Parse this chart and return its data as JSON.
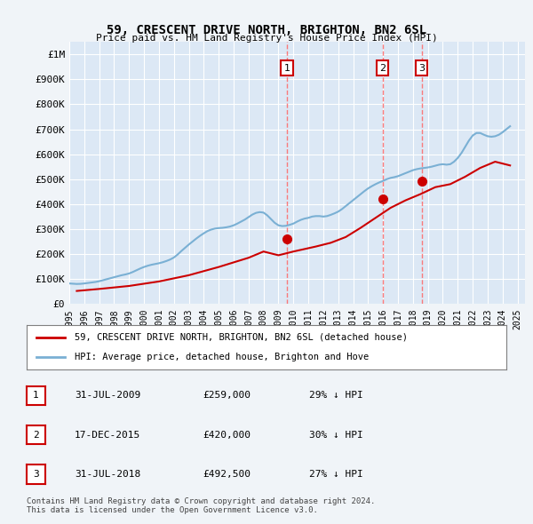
{
  "title": "59, CRESCENT DRIVE NORTH, BRIGHTON, BN2 6SL",
  "subtitle": "Price paid vs. HM Land Registry's House Price Index (HPI)",
  "background_color": "#f0f4f8",
  "plot_background": "#dce8f5",
  "grid_color": "#ffffff",
  "hpi_color": "#7ab0d4",
  "price_color": "#cc0000",
  "sale_marker_color": "#cc0000",
  "vline_color": "#ff6666",
  "ylim": [
    0,
    1050000
  ],
  "yticks": [
    0,
    100000,
    200000,
    300000,
    400000,
    500000,
    600000,
    700000,
    800000,
    900000,
    1000000
  ],
  "ytick_labels": [
    "£0",
    "£100K",
    "£200K",
    "£300K",
    "£400K",
    "£500K",
    "£600K",
    "£700K",
    "£800K",
    "£900K",
    "£1M"
  ],
  "xmin": 1995.0,
  "xmax": 2025.5,
  "xtick_years": [
    1995,
    1996,
    1997,
    1998,
    1999,
    2000,
    2001,
    2002,
    2003,
    2004,
    2005,
    2006,
    2007,
    2008,
    2009,
    2010,
    2011,
    2012,
    2013,
    2014,
    2015,
    2016,
    2017,
    2018,
    2019,
    2020,
    2021,
    2022,
    2023,
    2024,
    2025
  ],
  "sale_dates": [
    2009.58,
    2015.96,
    2018.58
  ],
  "sale_prices": [
    259000,
    420000,
    492500
  ],
  "sale_labels": [
    "1",
    "2",
    "3"
  ],
  "legend_entries": [
    "59, CRESCENT DRIVE NORTH, BRIGHTON, BN2 6SL (detached house)",
    "HPI: Average price, detached house, Brighton and Hove"
  ],
  "table_rows": [
    [
      "1",
      "31-JUL-2009",
      "£259,000",
      "29% ↓ HPI"
    ],
    [
      "2",
      "17-DEC-2015",
      "£420,000",
      "30% ↓ HPI"
    ],
    [
      "3",
      "31-JUL-2018",
      "£492,500",
      "27% ↓ HPI"
    ]
  ],
  "footnote": "Contains HM Land Registry data © Crown copyright and database right 2024.\nThis data is licensed under the Open Government Licence v3.0.",
  "hpi_data_x": [
    1995.0,
    1995.25,
    1995.5,
    1995.75,
    1996.0,
    1996.25,
    1996.5,
    1996.75,
    1997.0,
    1997.25,
    1997.5,
    1997.75,
    1998.0,
    1998.25,
    1998.5,
    1998.75,
    1999.0,
    1999.25,
    1999.5,
    1999.75,
    2000.0,
    2000.25,
    2000.5,
    2000.75,
    2001.0,
    2001.25,
    2001.5,
    2001.75,
    2002.0,
    2002.25,
    2002.5,
    2002.75,
    2003.0,
    2003.25,
    2003.5,
    2003.75,
    2004.0,
    2004.25,
    2004.5,
    2004.75,
    2005.0,
    2005.25,
    2005.5,
    2005.75,
    2006.0,
    2006.25,
    2006.5,
    2006.75,
    2007.0,
    2007.25,
    2007.5,
    2007.75,
    2008.0,
    2008.25,
    2008.5,
    2008.75,
    2009.0,
    2009.25,
    2009.5,
    2009.75,
    2010.0,
    2010.25,
    2010.5,
    2010.75,
    2011.0,
    2011.25,
    2011.5,
    2011.75,
    2012.0,
    2012.25,
    2012.5,
    2012.75,
    2013.0,
    2013.25,
    2013.5,
    2013.75,
    2014.0,
    2014.25,
    2014.5,
    2014.75,
    2015.0,
    2015.25,
    2015.5,
    2015.75,
    2016.0,
    2016.25,
    2016.5,
    2016.75,
    2017.0,
    2017.25,
    2017.5,
    2017.75,
    2018.0,
    2018.25,
    2018.5,
    2018.75,
    2019.0,
    2019.25,
    2019.5,
    2019.75,
    2020.0,
    2020.25,
    2020.5,
    2020.75,
    2021.0,
    2021.25,
    2021.5,
    2021.75,
    2022.0,
    2022.25,
    2022.5,
    2022.75,
    2023.0,
    2023.25,
    2023.5,
    2023.75,
    2024.0,
    2024.25,
    2024.5
  ],
  "hpi_data_y": [
    82000,
    81000,
    80000,
    80500,
    82000,
    84000,
    86000,
    88000,
    91000,
    95000,
    99000,
    103000,
    107000,
    111000,
    115000,
    118000,
    122000,
    128000,
    135000,
    142000,
    148000,
    153000,
    157000,
    160000,
    163000,
    167000,
    172000,
    178000,
    186000,
    198000,
    212000,
    225000,
    238000,
    250000,
    262000,
    273000,
    283000,
    292000,
    298000,
    302000,
    304000,
    305000,
    307000,
    310000,
    315000,
    322000,
    330000,
    338000,
    348000,
    358000,
    365000,
    368000,
    366000,
    355000,
    340000,
    325000,
    315000,
    312000,
    313000,
    317000,
    322000,
    330000,
    337000,
    342000,
    345000,
    350000,
    352000,
    352000,
    350000,
    352000,
    357000,
    363000,
    370000,
    380000,
    392000,
    404000,
    416000,
    428000,
    440000,
    452000,
    463000,
    472000,
    480000,
    487000,
    493000,
    500000,
    505000,
    508000,
    512000,
    518000,
    524000,
    530000,
    536000,
    540000,
    543000,
    545000,
    547000,
    550000,
    554000,
    558000,
    560000,
    558000,
    560000,
    570000,
    585000,
    605000,
    630000,
    655000,
    675000,
    685000,
    685000,
    678000,
    672000,
    670000,
    672000,
    678000,
    688000,
    700000,
    712000
  ],
  "price_index_x": [
    1995.5,
    1997.0,
    1999.0,
    2001.0,
    2003.0,
    2005.0,
    2007.0,
    2008.0,
    2009.0,
    2010.0,
    2011.5,
    2012.5,
    2013.5,
    2014.5,
    2015.5,
    2016.5,
    2017.5,
    2018.5,
    2019.5,
    2020.5,
    2021.5,
    2022.5,
    2023.5,
    2024.5
  ],
  "price_index_y": [
    52000,
    60000,
    72000,
    90000,
    115000,
    148000,
    185000,
    210000,
    195000,
    210000,
    230000,
    245000,
    268000,
    305000,
    345000,
    385000,
    415000,
    440000,
    468000,
    480000,
    510000,
    545000,
    570000,
    555000
  ]
}
